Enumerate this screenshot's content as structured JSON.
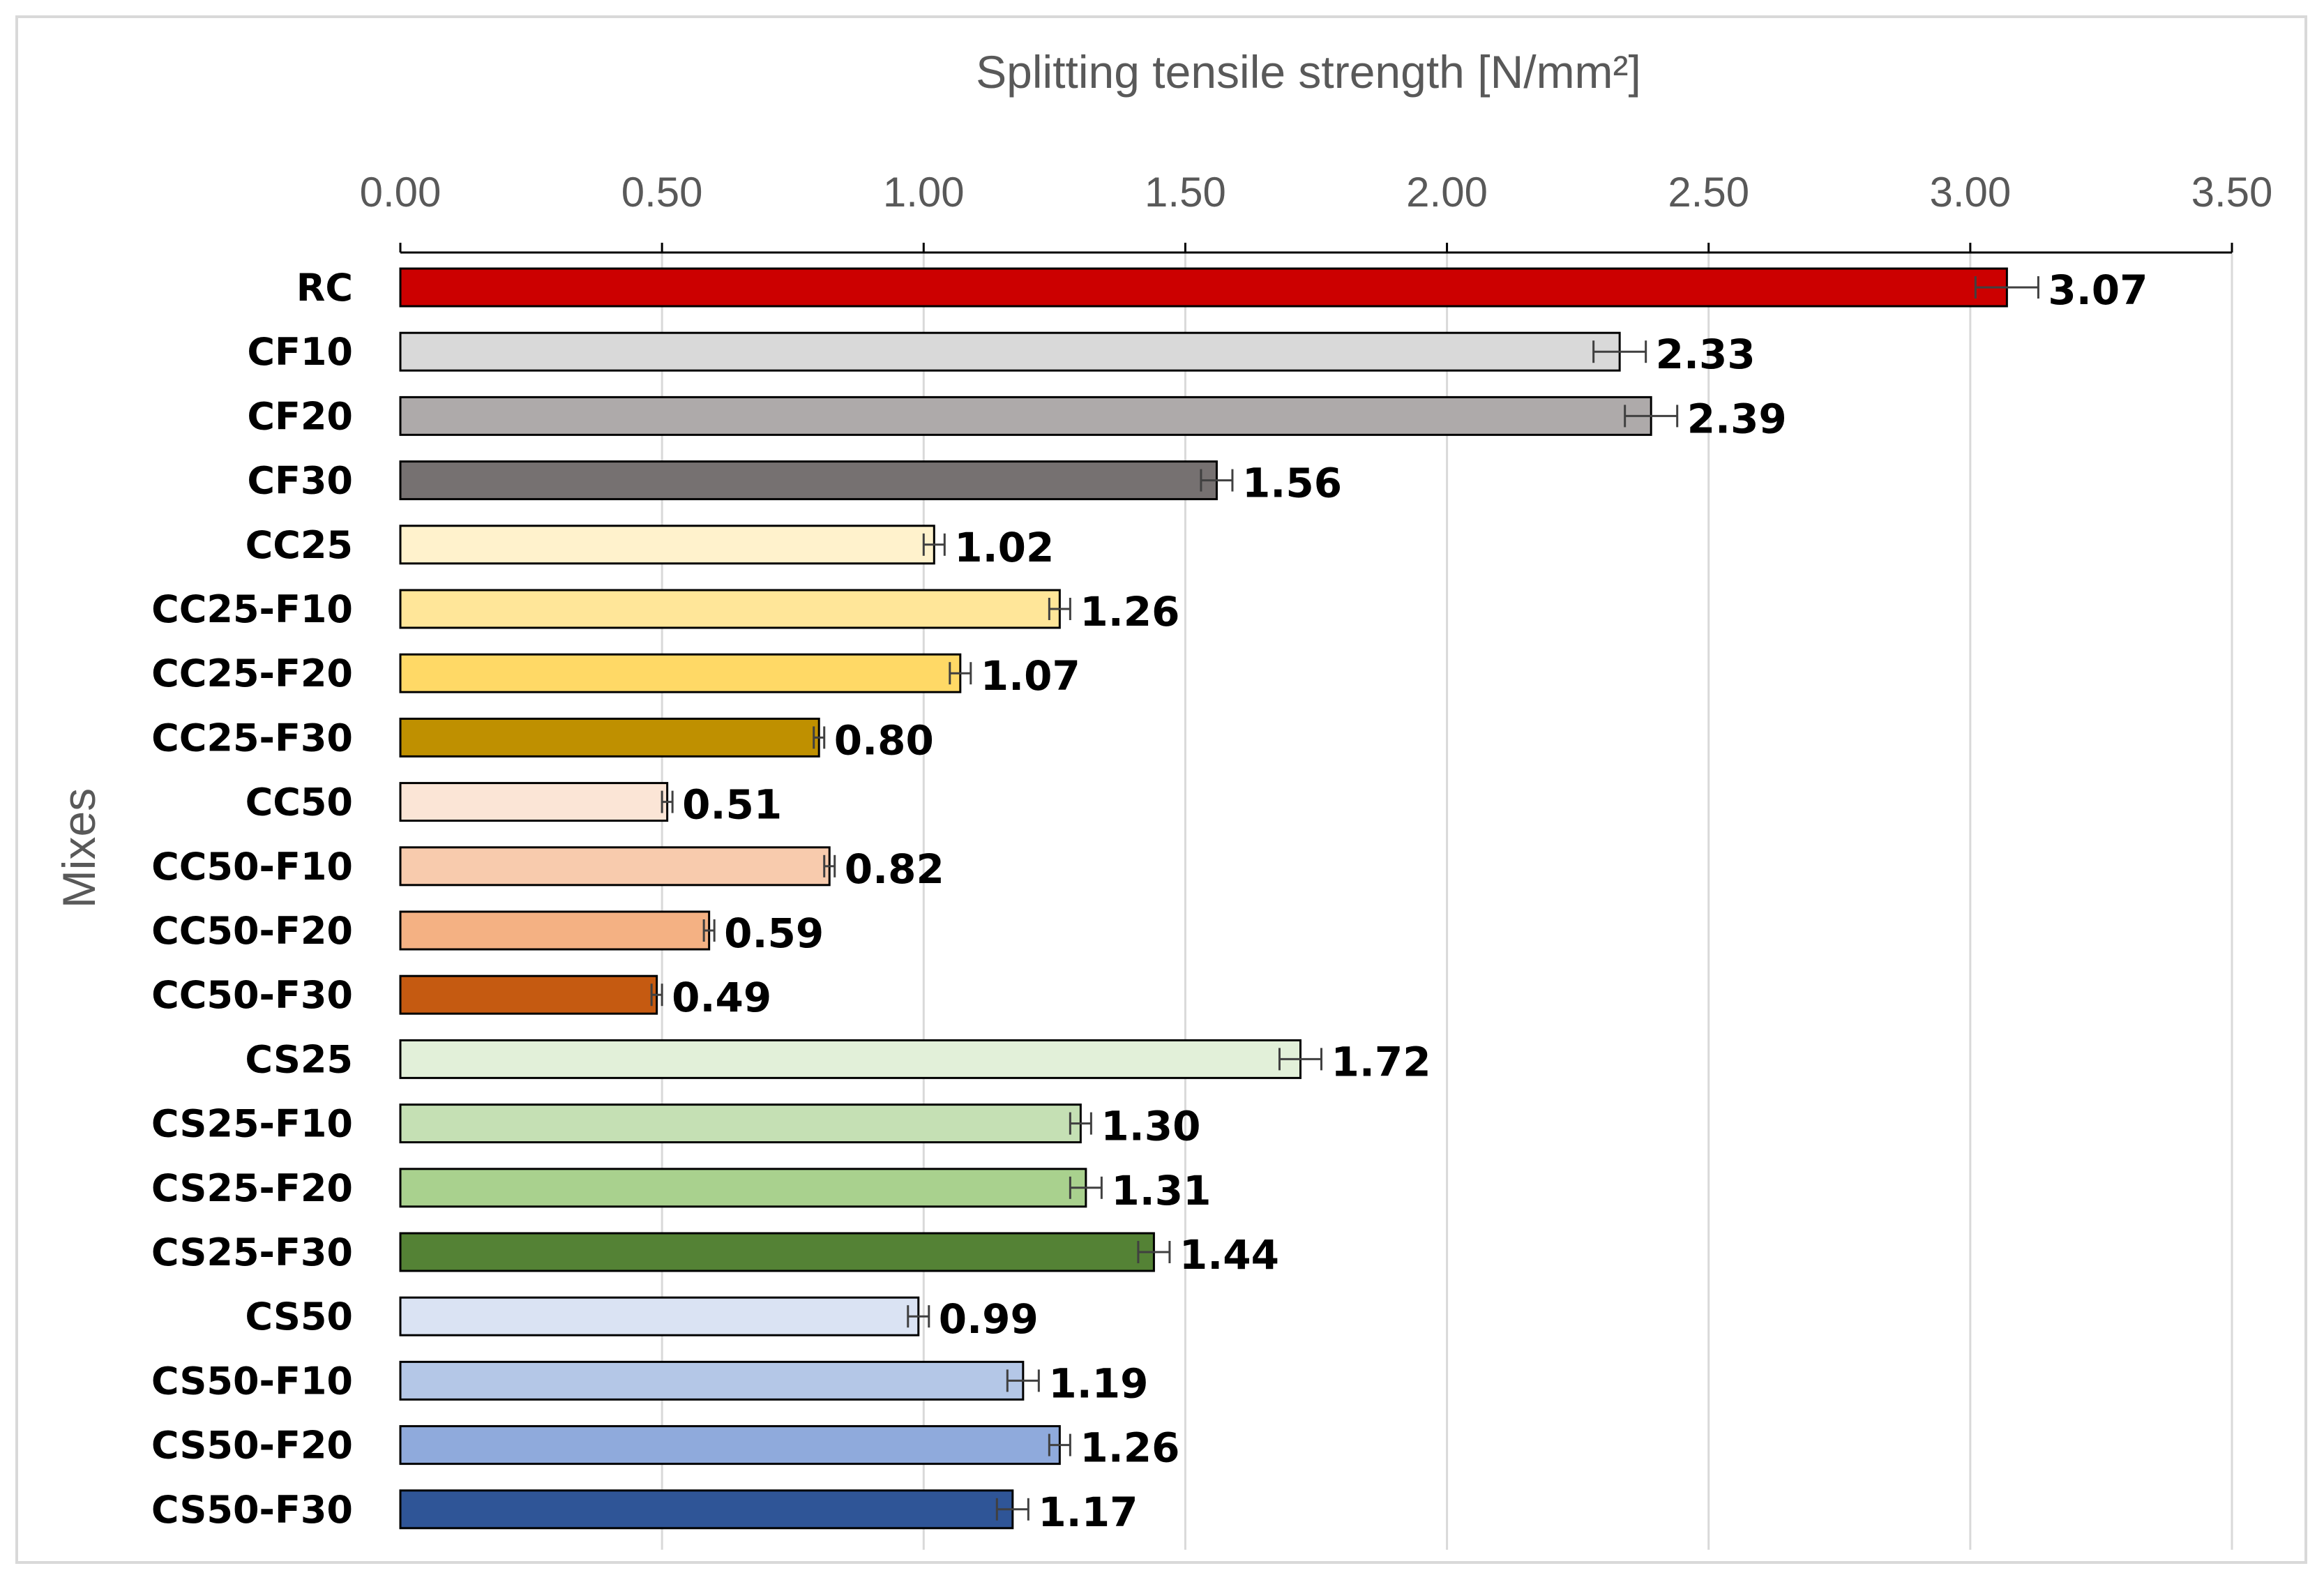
{
  "chart_data": {
    "type": "bar",
    "orientation": "horizontal",
    "xlabel": "Splitting tensile strength [N/mm²]",
    "ylabel": "Mixes",
    "xlim": [
      0,
      3.5
    ],
    "x_ticks": [
      "0.00",
      "0.50",
      "1.00",
      "1.50",
      "2.00",
      "2.50",
      "3.00",
      "3.50"
    ],
    "x_tick_values": [
      0,
      0.5,
      1.0,
      1.5,
      2.0,
      2.5,
      3.0,
      3.5
    ],
    "grid": "vertical",
    "legend": "none",
    "error_bars": true,
    "categories": [
      "RC",
      "CF10",
      "CF20",
      "CF30",
      "CC25",
      "CC25-F10",
      "CC25-F20",
      "CC25-F30",
      "CC50",
      "CC50-F10",
      "CC50-F20",
      "CC50-F30",
      "CS25",
      "CS25-F10",
      "CS25-F20",
      "CS25-F30",
      "CS50",
      "CS50-F10",
      "CS50-F20",
      "CS50-F30"
    ],
    "values": [
      3.07,
      2.33,
      2.39,
      1.56,
      1.02,
      1.26,
      1.07,
      0.8,
      0.51,
      0.82,
      0.59,
      0.49,
      1.72,
      1.3,
      1.31,
      1.44,
      0.99,
      1.19,
      1.26,
      1.17
    ],
    "value_labels": [
      "3.07",
      "2.33",
      "2.39",
      "1.56",
      "1.02",
      "1.26",
      "1.07",
      "0.80",
      "0.51",
      "0.82",
      "0.59",
      "0.49",
      "1.72",
      "1.30",
      "1.31",
      "1.44",
      "0.99",
      "1.19",
      "1.26",
      "1.17"
    ],
    "errors": [
      0.06,
      0.05,
      0.05,
      0.03,
      0.02,
      0.02,
      0.02,
      0.01,
      0.01,
      0.01,
      0.01,
      0.01,
      0.04,
      0.02,
      0.03,
      0.03,
      0.02,
      0.03,
      0.02,
      0.03
    ],
    "colors": [
      "#cc0000",
      "#d9d9d9",
      "#aeaaaa",
      "#767171",
      "#fff2cc",
      "#ffe699",
      "#ffd966",
      "#bf9000",
      "#fbe5d6",
      "#f8cbad",
      "#f4b183",
      "#c55a11",
      "#e2f0d9",
      "#c5e0b4",
      "#a9d18e",
      "#548235",
      "#dae3f3",
      "#b4c7e7",
      "#8faadc",
      "#2f5597"
    ]
  }
}
